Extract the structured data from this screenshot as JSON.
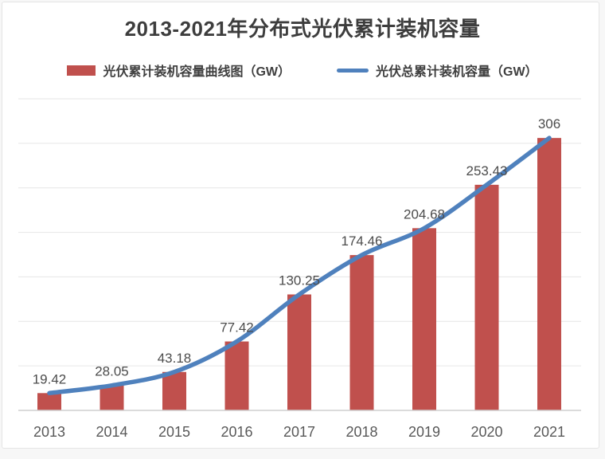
{
  "title": "2013-2021年分布式光伏累计装机容量",
  "legend": [
    {
      "label": "光伏累计装机容量曲线图（GW）",
      "swatch": "bar",
      "color": "#c0504d"
    },
    {
      "label": "光伏总累计装机容量（GW）",
      "swatch": "line",
      "color": "#4f81bd"
    }
  ],
  "chart_data": {
    "type": "bar",
    "title": "2013-2021年分布式光伏累计装机容量",
    "categories": [
      "2013",
      "2014",
      "2015",
      "2016",
      "2017",
      "2018",
      "2019",
      "2020",
      "2021"
    ],
    "series": [
      {
        "name": "光伏累计装机容量曲线图（GW）",
        "type": "bar",
        "color": "#c0504d",
        "values": [
          19.42,
          28.05,
          43.18,
          77.42,
          130.25,
          174.46,
          204.68,
          253.43,
          306
        ]
      },
      {
        "name": "光伏总累计装机容量（GW）",
        "type": "line",
        "color": "#4f81bd",
        "smooth": true,
        "values": [
          19.42,
          28.05,
          43.18,
          77.42,
          130.25,
          174.46,
          204.68,
          253.43,
          306
        ]
      }
    ],
    "data_labels": [
      "19.42",
      "28.05",
      "43.18",
      "77.42",
      "130.25",
      "174.46",
      "204.68",
      "253.43",
      "306"
    ],
    "xlabel": "",
    "ylabel": "",
    "ylim": [
      0,
      350
    ],
    "grid_step": 50,
    "grid": true,
    "y_tick_labels_visible": false,
    "legend_position": "top"
  },
  "colors": {
    "grid": "#e6e6e6",
    "axis": "#cfcfcf",
    "data_label": "#4c4c4c",
    "x_label": "#595959",
    "title": "#3d3d3d"
  }
}
